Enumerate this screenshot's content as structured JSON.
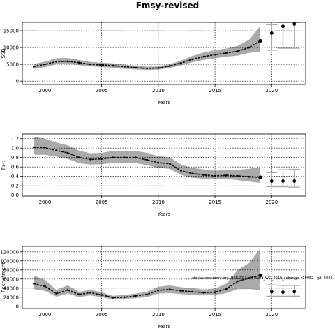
{
  "figure": {
    "title": "Fmsy-revised"
  },
  "chart_data": [
    {
      "type": "line",
      "ylabel": "SSB",
      "xlabel": "Years",
      "xlim": [
        1998,
        2023
      ],
      "ylim": [
        -1000,
        17500
      ],
      "xticks": [
        2000,
        2005,
        2010,
        2015,
        2020
      ],
      "yticks": [
        0,
        5000,
        10000,
        15000
      ],
      "ytick_labels": [
        "0",
        "5000",
        "10000",
        "15000"
      ],
      "grid": true,
      "annotation": "",
      "series": [
        {
          "x": [
            1999,
            2000,
            2001,
            2002,
            2003,
            2004,
            2005,
            2006,
            2007,
            2008,
            2009,
            2010,
            2011,
            2012,
            2013,
            2014,
            2015,
            2016,
            2017,
            2018,
            2019
          ],
          "y": [
            4300,
            5000,
            5800,
            5900,
            5500,
            5000,
            4800,
            4600,
            4300,
            4000,
            3800,
            3900,
            4500,
            5400,
            6500,
            7300,
            7900,
            8400,
            8900,
            10000,
            12000
          ],
          "lower": [
            3600,
            4200,
            5000,
            5200,
            4800,
            4400,
            4200,
            4000,
            3700,
            3500,
            3300,
            3400,
            3900,
            4700,
            5600,
            6300,
            6800,
            7300,
            7600,
            8400,
            8800
          ],
          "upper": [
            5100,
            5800,
            6800,
            6900,
            6300,
            5700,
            5500,
            5300,
            4900,
            4600,
            4300,
            4400,
            5100,
            6100,
            7500,
            8500,
            9200,
            9700,
            10500,
            12300,
            16500
          ]
        }
      ],
      "projection": {
        "x": [
          2020,
          2021,
          2022
        ],
        "y": [
          14300,
          16300,
          17000
        ],
        "lower": [
          9200,
          9800,
          9800
        ],
        "upper": [
          16800,
          17500,
          17500
        ]
      }
    },
    {
      "type": "line",
      "ylabel": "F₃₋₅",
      "xlabel": "Years",
      "xlim": [
        1998,
        2023
      ],
      "ylim": [
        -0.02,
        1.3
      ],
      "xticks": [
        2000,
        2005,
        2010,
        2015,
        2020
      ],
      "yticks": [
        0.0,
        0.2,
        0.4,
        0.6,
        0.8,
        1.0,
        1.2
      ],
      "ytick_labels": [
        "0.0",
        "0.2",
        "0.4",
        "0.6",
        "0.8",
        "1.0",
        "1.2"
      ],
      "grid": true,
      "annotation": "",
      "series": [
        {
          "x": [
            1999,
            2000,
            2001,
            2002,
            2003,
            2004,
            2005,
            2006,
            2007,
            2008,
            2009,
            2010,
            2011,
            2012,
            2013,
            2014,
            2015,
            2016,
            2017,
            2018,
            2019
          ],
          "y": [
            1.02,
            1.01,
            0.95,
            0.9,
            0.8,
            0.76,
            0.77,
            0.8,
            0.8,
            0.8,
            0.75,
            0.69,
            0.67,
            0.52,
            0.46,
            0.43,
            0.41,
            0.42,
            0.41,
            0.39,
            0.38
          ],
          "lower": [
            0.86,
            0.86,
            0.82,
            0.77,
            0.68,
            0.65,
            0.66,
            0.68,
            0.68,
            0.68,
            0.64,
            0.58,
            0.56,
            0.43,
            0.37,
            0.35,
            0.34,
            0.35,
            0.32,
            0.29,
            0.26
          ],
          "upper": [
            1.24,
            1.2,
            1.12,
            1.06,
            0.95,
            0.89,
            0.9,
            0.94,
            0.94,
            0.94,
            0.9,
            0.83,
            0.81,
            0.65,
            0.58,
            0.55,
            0.52,
            0.54,
            0.54,
            0.56,
            0.6
          ]
        }
      ],
      "projection": {
        "x": [
          2020,
          2021,
          2022
        ],
        "y": [
          0.3,
          0.3,
          0.3
        ],
        "lower": [
          0.18,
          0.18,
          0.17
        ],
        "upper": [
          0.48,
          0.54,
          0.55
        ]
      }
    },
    {
      "type": "line",
      "ylabel": "Recruitment",
      "xlabel": "Years",
      "xlim": [
        1998,
        2023
      ],
      "ylim": [
        -5000,
        132000
      ],
      "xticks": [
        2000,
        2005,
        2010,
        2015,
        2020
      ],
      "yticks": [
        0,
        20000,
        40000,
        60000,
        80000,
        100000,
        120000
      ],
      "ytick_labels": [
        "0",
        "20000",
        "40000",
        "60000",
        "80000",
        "100000",
        "120000"
      ],
      "grid": true,
      "annotation": "stockassessment.org, HKE.27.3a46-8abd_WG_2019_4change, r10962 , git: 5036...",
      "series": [
        {
          "x": [
            1999,
            2000,
            2001,
            2002,
            2003,
            2004,
            2005,
            2006,
            2007,
            2008,
            2009,
            2010,
            2011,
            2012,
            2013,
            2014,
            2015,
            2016,
            2017,
            2018,
            2019
          ],
          "y": [
            50000,
            44000,
            28000,
            36000,
            26000,
            30000,
            25000,
            19000,
            20000,
            23000,
            26000,
            35000,
            37000,
            34000,
            32000,
            30000,
            31000,
            38000,
            55000,
            62000,
            68000
          ],
          "lower": [
            38000,
            34000,
            21000,
            28000,
            20000,
            24000,
            20000,
            15000,
            16000,
            18000,
            20000,
            28000,
            29000,
            27000,
            25000,
            24000,
            25000,
            29000,
            38000,
            38000,
            36000
          ],
          "upper": [
            68000,
            58000,
            36000,
            46000,
            32000,
            36000,
            31000,
            23000,
            25000,
            28000,
            32000,
            43000,
            46000,
            42000,
            40000,
            37000,
            39000,
            50000,
            80000,
            95000,
            128000
          ]
        }
      ],
      "projection": {
        "x": [
          2020,
          2021,
          2022
        ],
        "y": [
          32000,
          31000,
          32000
        ],
        "lower": [
          22000,
          22000,
          22000
        ],
        "upper": [
          47000,
          46000,
          46000
        ]
      }
    }
  ]
}
